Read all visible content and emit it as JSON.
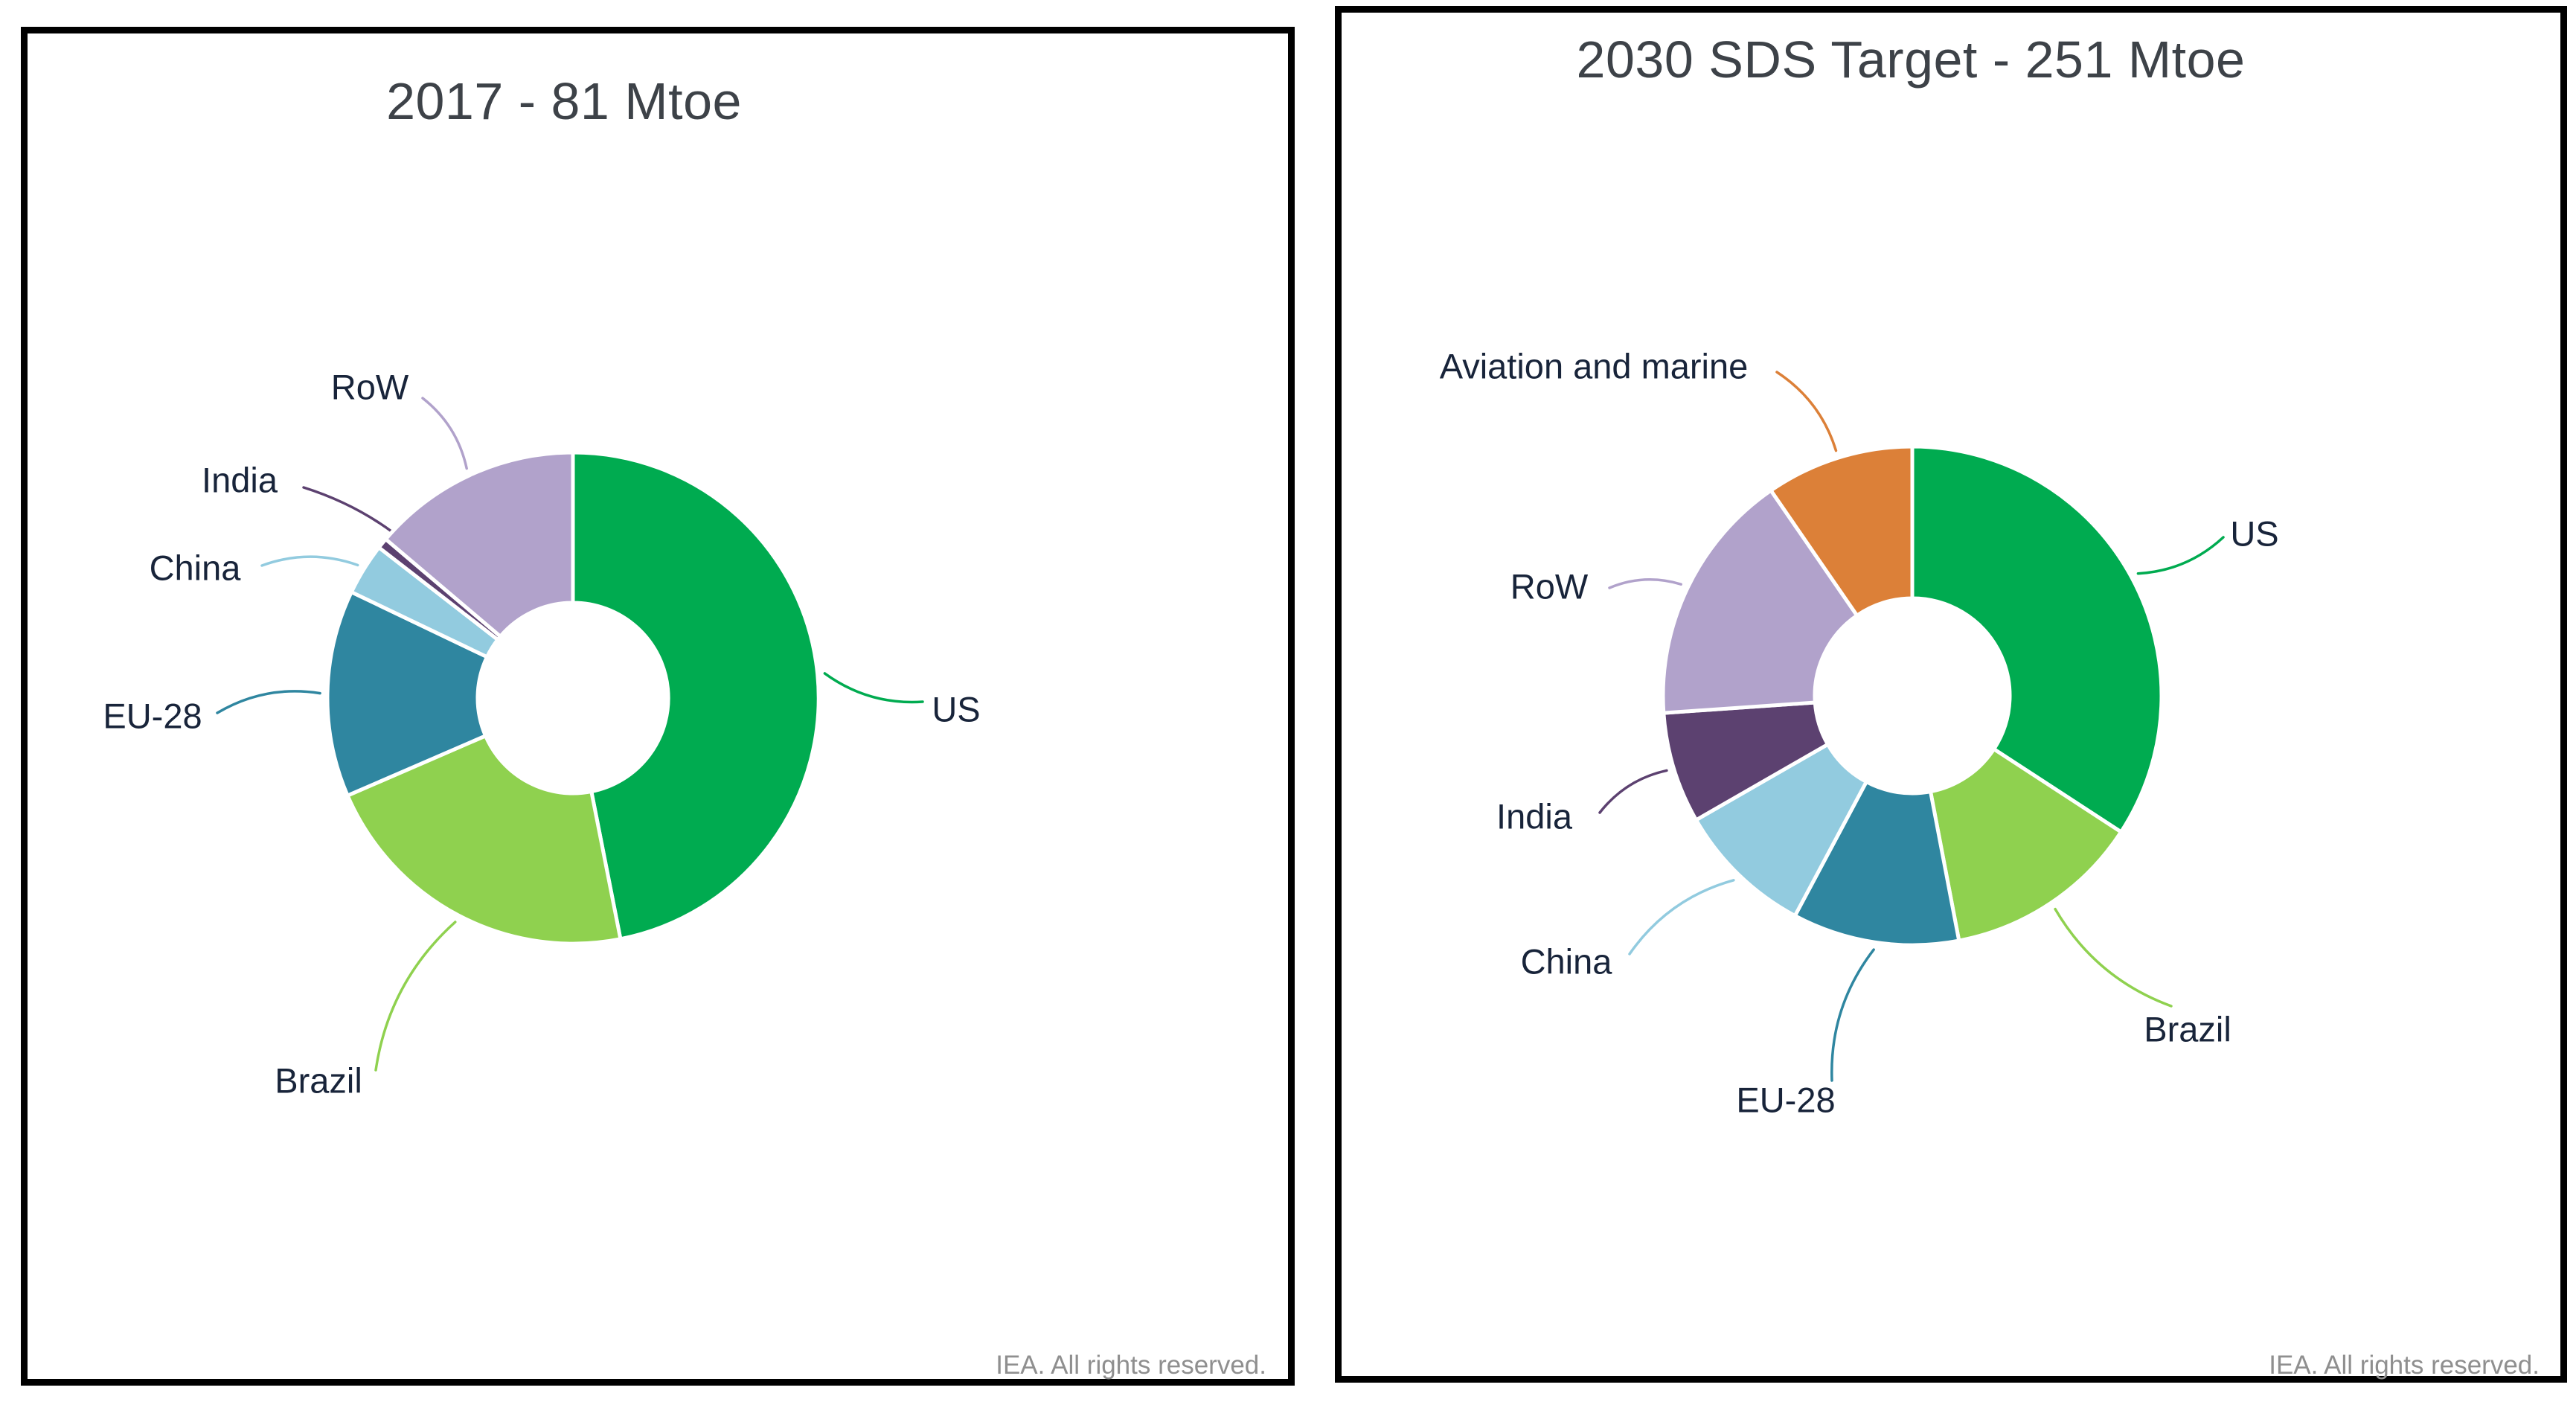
{
  "footer_text": "IEA. All rights reserved.",
  "chart_data": [
    {
      "type": "pie",
      "subtype": "donut",
      "title": "2017 - 81 Mtoe",
      "total_mtoe": 81,
      "unit": "Mtoe",
      "start_angle_deg": 0,
      "direction": "clockwise",
      "legend_position": "callout-labels",
      "labels": [
        "US",
        "Brazil",
        "EU-28",
        "China",
        "India",
        "RoW"
      ],
      "values_pct": [
        46.9,
        21.6,
        13.6,
        3.4,
        0.7,
        13.8
      ],
      "colors": [
        "#00ab50",
        "#8fd14f",
        "#2f86a0",
        "#92cbdf",
        "#5c4170",
        "#b1a2cb"
      ]
    },
    {
      "type": "pie",
      "subtype": "donut",
      "title": "2030 SDS Target - 251 Mtoe",
      "total_mtoe": 251,
      "unit": "Mtoe",
      "start_angle_deg": 0,
      "direction": "clockwise",
      "legend_position": "callout-labels",
      "labels": [
        "US",
        "Brazil",
        "EU-28",
        "China",
        "India",
        "RoW",
        "Aviation and marine"
      ],
      "values_pct": [
        34.2,
        12.8,
        10.8,
        8.9,
        7.2,
        16.5,
        9.6
      ],
      "colors": [
        "#00ab50",
        "#8fd14f",
        "#2f86a0",
        "#92cbdf",
        "#5c4170",
        "#b1a2cb",
        "#dc8038"
      ]
    }
  ]
}
